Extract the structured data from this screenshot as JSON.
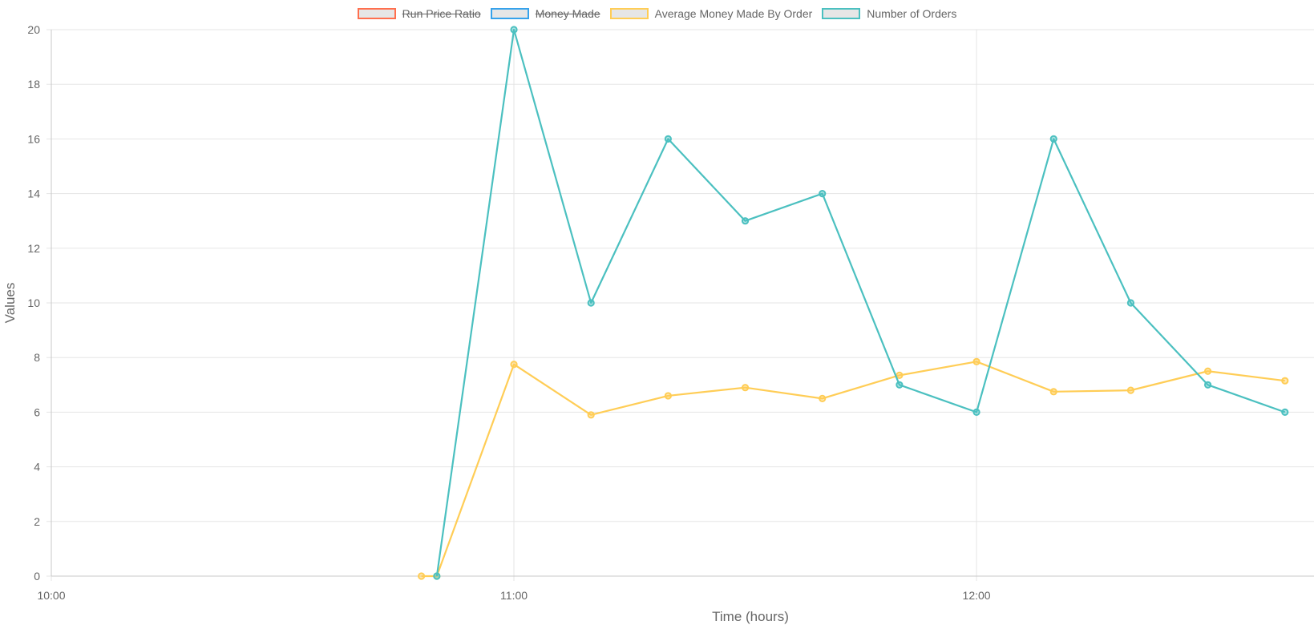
{
  "chart_data": {
    "type": "line",
    "xlabel": "Time (hours)",
    "ylabel": "Values",
    "xlim": [
      "10:00",
      "12:42"
    ],
    "ylim": [
      0,
      20
    ],
    "x_ticks": [
      "10:00",
      "11:00",
      "12:00"
    ],
    "y_ticks": [
      "0",
      "2",
      "4",
      "6",
      "8",
      "10",
      "12",
      "14",
      "16",
      "18",
      "20"
    ],
    "grid": true,
    "legend_position": "top",
    "series": [
      {
        "name": "Run Price Ratio",
        "color": "#ff6f4e",
        "hidden": true,
        "x": [],
        "values": []
      },
      {
        "name": "Money Made",
        "color": "#36a2eb",
        "hidden": true,
        "x": [],
        "values": []
      },
      {
        "name": "Average Money Made By Order",
        "color": "#ffcd56",
        "hidden": false,
        "x": [
          "10:48",
          "10:50",
          "11:00",
          "11:10",
          "11:20",
          "11:30",
          "11:40",
          "11:50",
          "12:00",
          "12:10",
          "12:20",
          "12:30",
          "12:40"
        ],
        "values": [
          0,
          0,
          7.75,
          5.9,
          6.6,
          6.9,
          6.5,
          7.35,
          7.85,
          6.75,
          6.8,
          7.5,
          7.15
        ]
      },
      {
        "name": "Number of Orders",
        "color": "#4bc0c0",
        "hidden": false,
        "x": [
          "10:50",
          "11:00",
          "11:10",
          "11:20",
          "11:30",
          "11:40",
          "11:50",
          "12:00",
          "12:10",
          "12:20",
          "12:30",
          "12:40"
        ],
        "values": [
          0,
          20,
          10,
          16,
          13,
          14,
          7,
          6,
          16,
          10,
          7,
          6
        ]
      }
    ]
  }
}
